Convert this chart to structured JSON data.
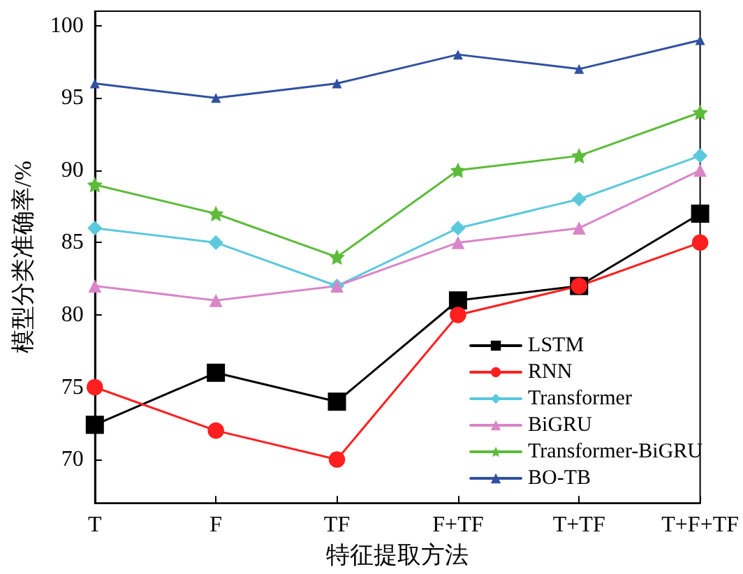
{
  "chart_data": {
    "type": "line",
    "xlabel": "特征提取方法",
    "ylabel": "模型分类准确率/%",
    "categories": [
      "T",
      "F",
      "TF",
      "F+TF",
      "T+TF",
      "T+F+TF"
    ],
    "ylim": [
      67,
      101
    ],
    "yticks": [
      70,
      75,
      80,
      85,
      90,
      95,
      100
    ],
    "grid": false,
    "legend": "bottom right",
    "line_style": "solid",
    "series": [
      {
        "name": "LSTM",
        "color": "#000000",
        "marker": "square",
        "values": [
          72.4,
          76,
          74,
          81,
          82,
          87
        ]
      },
      {
        "name": "RNN",
        "color": "#ff1f1f",
        "marker": "circle",
        "values": [
          75,
          72,
          70,
          80,
          82,
          85
        ]
      },
      {
        "name": "Transformer",
        "color": "#5bc8dc",
        "marker": "diamond",
        "values": [
          86,
          85,
          82,
          86,
          88,
          91
        ]
      },
      {
        "name": "BiGRU",
        "color": "#d986c8",
        "marker": "triangle",
        "values": [
          82,
          81,
          82,
          85,
          86,
          90
        ]
      },
      {
        "name": "Transformer-BiGRU",
        "color": "#5dbb3a",
        "marker": "star",
        "values": [
          89,
          87,
          84,
          90,
          91,
          94
        ]
      },
      {
        "name": "BO-TB",
        "color": "#3050a0",
        "marker": "triangle",
        "values": [
          96,
          95,
          96,
          98,
          97,
          99
        ]
      }
    ]
  }
}
